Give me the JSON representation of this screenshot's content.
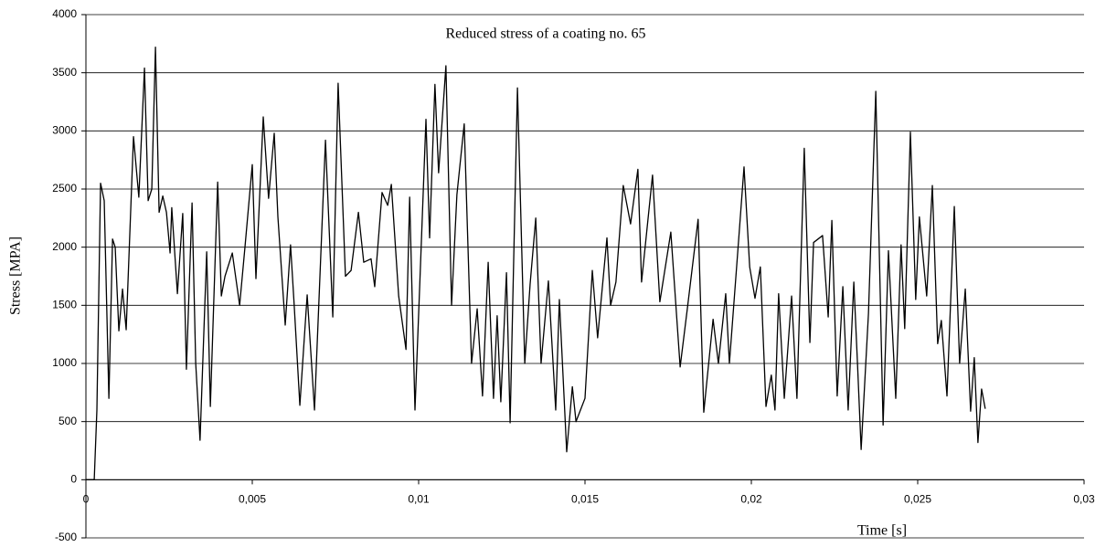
{
  "chart_data": {
    "type": "line",
    "title": "Reduced stress of a coating no. 65",
    "x_label": "Time [s]",
    "y_label": "Stress [MPA]",
    "grid": true,
    "xlim": [
      0,
      0.03
    ],
    "ylim": [
      -500,
      4000
    ],
    "xticks": [
      0,
      {
        "value": 0.005,
        "label": "0,005"
      },
      {
        "value": 0.01,
        "label": "0,01"
      },
      {
        "value": 0.015,
        "label": "0,015"
      },
      {
        "value": 0.02,
        "label": "0,02"
      },
      {
        "value": 0.025,
        "label": "0,025"
      },
      {
        "value": 0.03,
        "label": "0,03"
      }
    ],
    "yticks": [
      -500,
      0,
      500,
      1000,
      1500,
      2000,
      2500,
      3000,
      3500,
      4000
    ],
    "series": [
      {
        "color": "#000000",
        "x": [
          0,
          0.00025,
          0.00033,
          0.00044,
          0.00055,
          0.00069,
          0.0008,
          0.00088,
          0.00099,
          0.0011,
          0.00121,
          0.00143,
          0.00159,
          0.00176,
          0.00187,
          0.00198,
          0.00209,
          0.0022,
          0.00231,
          0.00242,
          0.00253,
          0.00258,
          0.00275,
          0.00291,
          0.00302,
          0.00319,
          0.0033,
          0.00343,
          0.00363,
          0.00374,
          0.00396,
          0.00407,
          0.00418,
          0.0044,
          0.00462,
          0.00478,
          0.005,
          0.00511,
          0.00533,
          0.00549,
          0.00566,
          0.00577,
          0.00599,
          0.00615,
          0.00626,
          0.00643,
          0.00665,
          0.00687,
          0.0072,
          0.00742,
          0.00758,
          0.0078,
          0.00797,
          0.00819,
          0.00835,
          0.00857,
          0.00868,
          0.0089,
          0.00907,
          0.00918,
          0.0094,
          0.00962,
          0.00973,
          0.00989,
          0.01005,
          0.01022,
          0.01033,
          0.01049,
          0.0106,
          0.01082,
          0.01099,
          0.01115,
          0.01137,
          0.01159,
          0.01176,
          0.01192,
          0.01209,
          0.01225,
          0.01236,
          0.01247,
          0.01264,
          0.01275,
          0.01297,
          0.01319,
          0.01335,
          0.01352,
          0.01368,
          0.0139,
          0.01412,
          0.01423,
          0.01445,
          0.01462,
          0.01473,
          0.015,
          0.01522,
          0.01538,
          0.01566,
          0.01577,
          0.01593,
          0.01615,
          0.01637,
          0.01659,
          0.0167,
          0.01703,
          0.01725,
          0.01758,
          0.01786,
          0.01808,
          0.0184,
          0.01857,
          0.01885,
          0.01901,
          0.01923,
          0.01934,
          0.01962,
          0.01978,
          0.01995,
          0.02011,
          0.02027,
          0.02044,
          0.0206,
          0.02071,
          0.02082,
          0.02099,
          0.02121,
          0.02137,
          0.02159,
          0.02176,
          0.02187,
          0.02214,
          0.02231,
          0.02242,
          0.02258,
          0.02275,
          0.02291,
          0.02308,
          0.02319,
          0.0233,
          0.02352,
          0.02374,
          0.02396,
          0.02412,
          0.02434,
          0.0245,
          0.02461,
          0.02478,
          0.02494,
          0.02505,
          0.02527,
          0.02544,
          0.0256,
          0.02571,
          0.02588,
          0.0261,
          0.02626,
          0.02643,
          0.02659,
          0.0267,
          0.02681,
          0.02692,
          0.02703
        ],
        "values": [
          0,
          0,
          600,
          2550,
          2400,
          700,
          2070,
          2000,
          1280,
          1640,
          1290,
          2950,
          2430,
          3540,
          2400,
          2500,
          3720,
          2300,
          2440,
          2300,
          1950,
          2340,
          1600,
          2290,
          950,
          2380,
          1000,
          340,
          1960,
          630,
          2560,
          1580,
          1750,
          1950,
          1500,
          2000,
          2710,
          1730,
          3120,
          2420,
          2980,
          2260,
          1330,
          2020,
          1500,
          640,
          1590,
          600,
          2920,
          1400,
          3410,
          1750,
          1800,
          2300,
          1870,
          1900,
          1660,
          2470,
          2360,
          2540,
          1580,
          1120,
          2430,
          600,
          1800,
          3100,
          2080,
          3400,
          2640,
          3560,
          1500,
          2450,
          3060,
          1000,
          1470,
          720,
          1870,
          700,
          1410,
          670,
          1780,
          490,
          3370,
          1000,
          1680,
          2250,
          1000,
          1710,
          600,
          1550,
          240,
          800,
          500,
          700,
          1800,
          1220,
          2080,
          1500,
          1700,
          2530,
          2200,
          2670,
          1700,
          2620,
          1530,
          2130,
          970,
          1480,
          2240,
          580,
          1380,
          1000,
          1600,
          1000,
          2070,
          2690,
          1830,
          1560,
          1830,
          630,
          900,
          600,
          1600,
          700,
          1580,
          700,
          2850,
          1180,
          2040,
          2100,
          1400,
          2230,
          720,
          1660,
          600,
          1700,
          1000,
          260,
          1430,
          3340,
          470,
          1970,
          700,
          2020,
          1300,
          2990,
          1550,
          2260,
          1580,
          2530,
          1170,
          1370,
          720,
          2350,
          1000,
          1640,
          590,
          1050,
          320,
          780,
          610
        ]
      }
    ]
  }
}
